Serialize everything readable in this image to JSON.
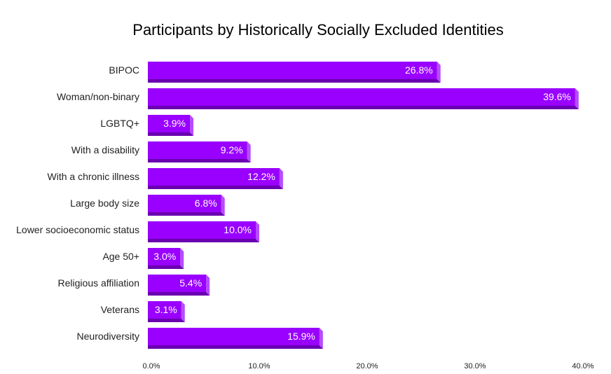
{
  "chart_data": {
    "type": "bar",
    "orientation": "horizontal",
    "title": "Participants by Historically Socially Excluded Identities",
    "categories": [
      "BIPOC",
      "Woman/non-binary",
      "LGBTQ+",
      "With a disability",
      "With a chronic illness",
      "Large body size",
      "Lower socioeconomic status",
      "Age 50+",
      "Religious affiliation",
      "Veterans",
      "Neurodiversity"
    ],
    "values": [
      26.8,
      39.6,
      3.9,
      9.2,
      12.2,
      6.8,
      10.0,
      3.0,
      5.4,
      3.1,
      15.9
    ],
    "data_labels": [
      "26.8%",
      "39.6%",
      "3.9%",
      "9.2%",
      "12.2%",
      "6.8%",
      "10.0%",
      "3.0%",
      "5.4%",
      "3.1%",
      "15.9%"
    ],
    "xlim": [
      0,
      40
    ],
    "x_ticks": [
      "0.0%",
      "10.0%",
      "20.0%",
      "30.0%",
      "40.0%"
    ],
    "grid": false,
    "style": "3d",
    "colors": {
      "bar_front": "#9900ff",
      "bar_bottom": "#6a00b0",
      "bar_side": "#b54dff"
    }
  }
}
